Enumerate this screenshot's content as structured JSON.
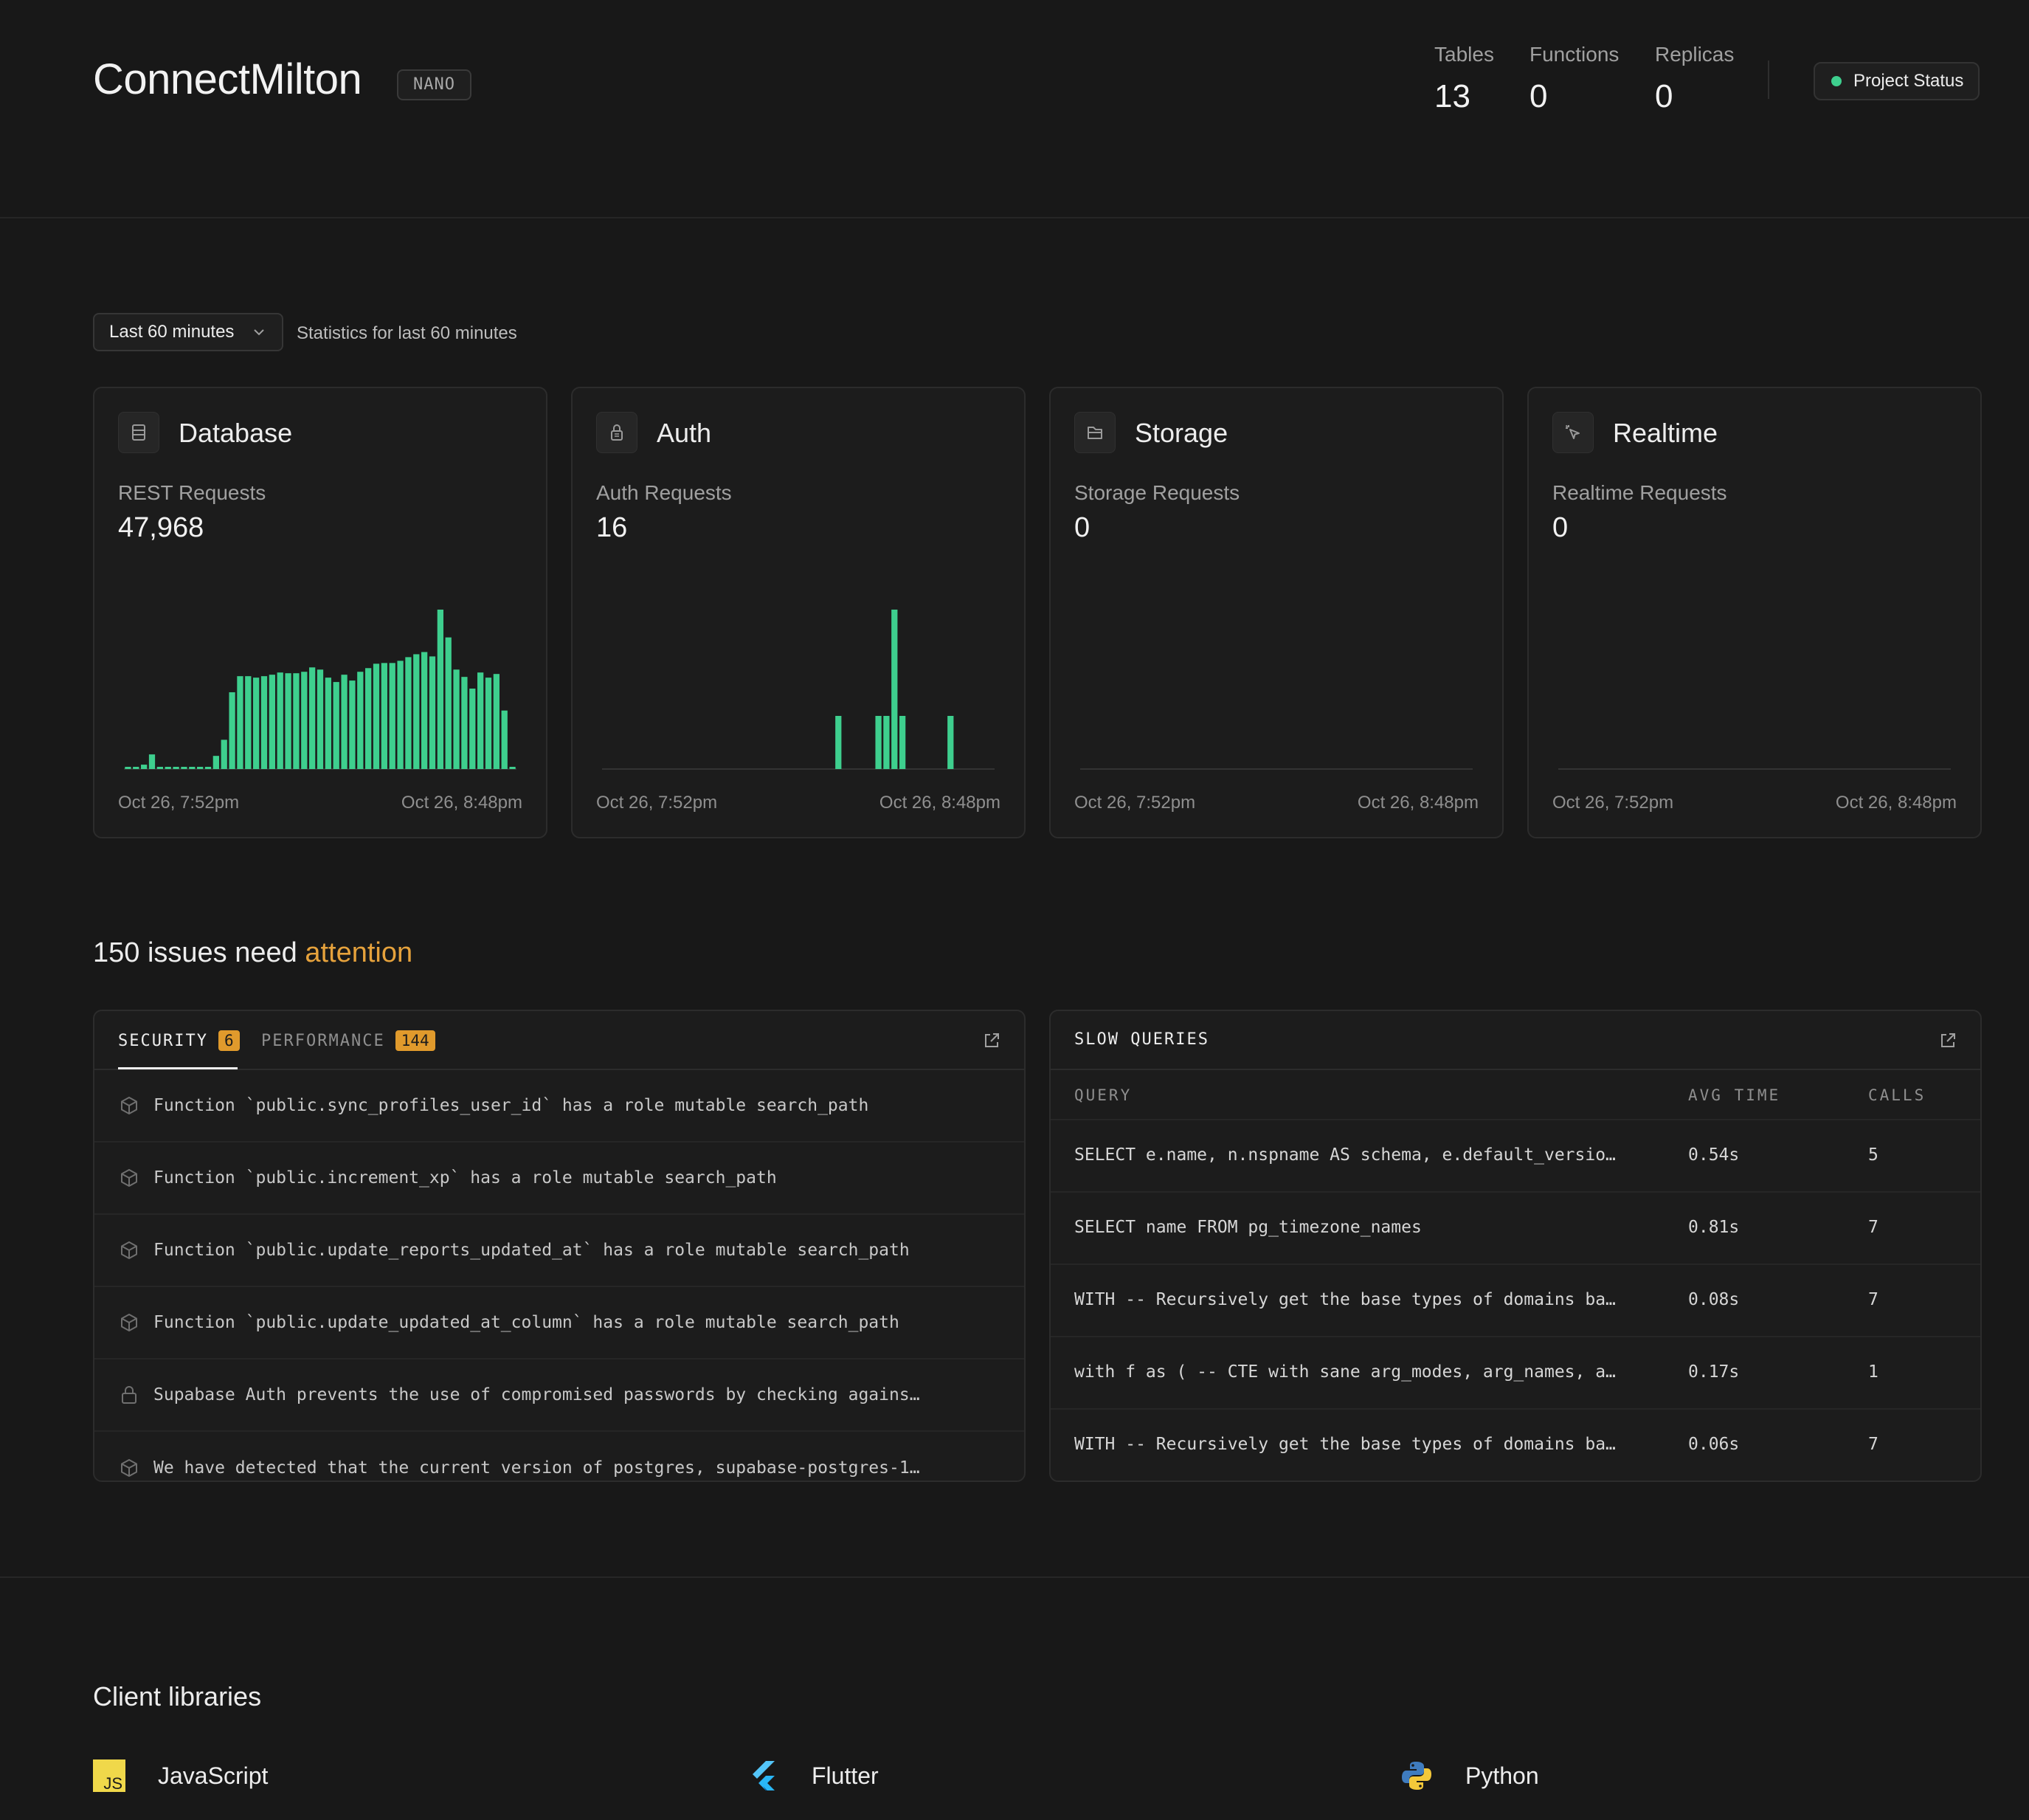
{
  "header": {
    "project_name": "ConnectMilton",
    "plan": "NANO",
    "stats": [
      {
        "label": "Tables",
        "value": "13"
      },
      {
        "label": "Functions",
        "value": "0"
      },
      {
        "label": "Replicas",
        "value": "0"
      }
    ],
    "status_button": "Project Status",
    "status_color": "#3ecf8e"
  },
  "time_range": {
    "selected": "Last 60 minutes",
    "caption": "Statistics for last 60 minutes"
  },
  "cards": [
    {
      "title": "Database",
      "icon": "database-icon",
      "metric_label": "REST Requests",
      "metric_value": "47,968",
      "x_start": "Oct 26, 7:52pm",
      "x_end": "Oct 26, 8:48pm"
    },
    {
      "title": "Auth",
      "icon": "lock-icon",
      "metric_label": "Auth Requests",
      "metric_value": "16",
      "x_start": "Oct 26, 7:52pm",
      "x_end": "Oct 26, 8:48pm"
    },
    {
      "title": "Storage",
      "icon": "folder-icon",
      "metric_label": "Storage Requests",
      "metric_value": "0",
      "x_start": "Oct 26, 7:52pm",
      "x_end": "Oct 26, 8:48pm"
    },
    {
      "title": "Realtime",
      "icon": "cursor-icon",
      "metric_label": "Realtime Requests",
      "metric_value": "0",
      "x_start": "Oct 26, 7:52pm",
      "x_end": "Oct 26, 8:48pm"
    }
  ],
  "chart_data": [
    {
      "type": "bar",
      "title": "REST Requests",
      "bar_color": "#3ecf8e",
      "x_range": [
        "Oct 26, 7:52pm",
        "Oct 26, 8:48pm"
      ],
      "series": [
        {
          "values": [
            30,
            30,
            60,
            200,
            30,
            30,
            30,
            30,
            30,
            30,
            30,
            180,
            400,
            1050,
            1270,
            1270,
            1250,
            1270,
            1290,
            1320,
            1310,
            1310,
            1330,
            1390,
            1360,
            1250,
            1190,
            1290,
            1210,
            1330,
            1380,
            1440,
            1450,
            1450,
            1480,
            1530,
            1570,
            1600,
            1540,
            2180,
            1800,
            1360,
            1260,
            1100,
            1320,
            1250,
            1300,
            800,
            30
          ]
        }
      ]
    },
    {
      "type": "bar",
      "title": "Auth Requests",
      "bar_color": "#3ecf8e",
      "x_range": [
        "Oct 26, 7:52pm",
        "Oct 26, 8:48pm"
      ],
      "series": [
        {
          "values": [
            0,
            0,
            0,
            0,
            0,
            0,
            0,
            0,
            0,
            0,
            0,
            0,
            0,
            0,
            0,
            0,
            0,
            0,
            0,
            0,
            0,
            0,
            0,
            0,
            0,
            0,
            0,
            0,
            0,
            2,
            0,
            0,
            0,
            0,
            2,
            2,
            6,
            2,
            0,
            0,
            0,
            0,
            0,
            2,
            0,
            0,
            0,
            0,
            0
          ]
        }
      ]
    },
    {
      "type": "bar",
      "title": "Storage Requests",
      "bar_color": "#3ecf8e",
      "x_range": [
        "Oct 26, 7:52pm",
        "Oct 26, 8:48pm"
      ],
      "series": [
        {
          "values": []
        }
      ]
    },
    {
      "type": "bar",
      "title": "Realtime Requests",
      "bar_color": "#3ecf8e",
      "x_range": [
        "Oct 26, 7:52pm",
        "Oct 26, 8:48pm"
      ],
      "series": [
        {
          "values": []
        }
      ]
    }
  ],
  "issues": {
    "heading_prefix": "150 issues need",
    "heading_highlight": "attention",
    "highlight_color": "#e6a23c",
    "tabs": [
      {
        "label": "SECURITY",
        "count": "6",
        "active": true
      },
      {
        "label": "PERFORMANCE",
        "count": "144",
        "active": false
      }
    ],
    "rows": [
      {
        "icon": "cube-icon",
        "text": "Function `public.sync_profiles_user_id` has a role mutable search_path"
      },
      {
        "icon": "cube-icon",
        "text": "Function `public.increment_xp` has a role mutable search_path"
      },
      {
        "icon": "cube-icon",
        "text": "Function `public.update_reports_updated_at` has a role mutable search_path"
      },
      {
        "icon": "cube-icon",
        "text": "Function `public.update_updated_at_column` has a role mutable search_path"
      },
      {
        "icon": "lock-icon",
        "text": "Supabase Auth prevents the use of compromised passwords by checking agains…"
      },
      {
        "icon": "cube-icon",
        "text": "We have detected that the current version of postgres, supabase-postgres-1…"
      }
    ]
  },
  "slow_queries": {
    "title": "SLOW QUERIES",
    "columns": [
      "QUERY",
      "AVG TIME",
      "CALLS"
    ],
    "rows": [
      {
        "query": "SELECT e.name, n.nspname AS schema, e.default_versio…",
        "avg_time": "0.54s",
        "calls": "5"
      },
      {
        "query": "SELECT name FROM pg_timezone_names",
        "avg_time": "0.81s",
        "calls": "7"
      },
      {
        "query": "WITH -- Recursively get the base types of domains ba…",
        "avg_time": "0.08s",
        "calls": "7"
      },
      {
        "query": "with f as ( -- CTE with sane arg_modes, arg_names, a…",
        "avg_time": "0.17s",
        "calls": "1"
      },
      {
        "query": "WITH -- Recursively get the base types of domains ba…",
        "avg_time": "0.06s",
        "calls": "7"
      }
    ]
  },
  "client_libraries": {
    "heading": "Client libraries",
    "items": [
      {
        "name": "JavaScript",
        "icon": "javascript-icon",
        "logo_text": "JS"
      },
      {
        "name": "Flutter",
        "icon": "flutter-icon"
      },
      {
        "name": "Python",
        "icon": "python-icon"
      }
    ]
  }
}
